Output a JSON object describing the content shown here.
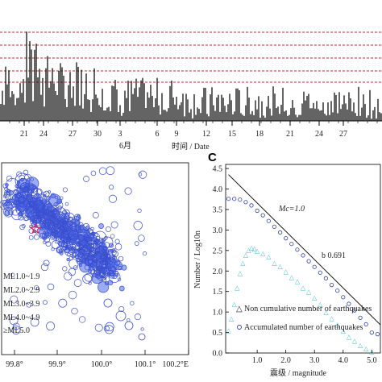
{
  "colors": {
    "bar": "#111111",
    "ref_line": "#c0283a",
    "circle": "#3b4fd0",
    "circle_fill": "#4a68e6",
    "triangle": "#3cc1d1",
    "accum": "#2d3fa8",
    "star": "#e0205a"
  },
  "chart_data": [
    {
      "type": "bar",
      "panel": "A",
      "description_ticks_only": true,
      "x_ticks": [
        "21",
        "24",
        "27",
        "30",
        "3",
        "6",
        "9",
        "12",
        "15",
        "18",
        "21",
        "24",
        "27"
      ],
      "x_label_month": "6月",
      "x_label": "时间 / Date",
      "ref_levels": [
        5,
        4,
        3,
        2,
        1
      ],
      "ylim": [
        0,
        5.3
      ],
      "series_seed": 7
    },
    {
      "type": "scatter",
      "panel": "B",
      "x_ticks": [
        "99.8°",
        "99.9°",
        "100.0°",
        "100.1°",
        "100.2°E"
      ],
      "xlim": [
        99.76,
        100.26
      ],
      "ylim": [
        25.45,
        26.0
      ],
      "legend": [
        "ML1.0~1.9",
        "ML2.0~2.9",
        "ML3.0~3.9",
        "ML4.0~4.9",
        "≥ML5.0"
      ]
    },
    {
      "type": "scatter",
      "panel": "C",
      "title_letter": "C",
      "xlabel": "震级 / magnitude",
      "ylabel": "Number / Log10n",
      "x_ticks": [
        "1.0",
        "2.0",
        "3.0",
        "4.0",
        "5.0"
      ],
      "y_ticks": [
        "0.0",
        "0.5",
        "1.0",
        "1.5",
        "2.0",
        "2.5",
        "3.0",
        "3.5",
        "4.0",
        "4.5"
      ],
      "xlim": [
        -0.1,
        5.3
      ],
      "ylim": [
        0,
        4.6
      ],
      "mc_label": "Mc=1.0",
      "b_label": "b  0.691",
      "fit_line": {
        "a": 4.35,
        "b": 0.691,
        "x_from": 0.0,
        "x_to": 5.3
      },
      "legend": [
        "Non cumulative number of earthquakes",
        "Accumulated number of earthquakes"
      ],
      "accumulated": [
        [
          0.0,
          3.76
        ],
        [
          0.2,
          3.76
        ],
        [
          0.4,
          3.74
        ],
        [
          0.6,
          3.68
        ],
        [
          0.8,
          3.6
        ],
        [
          1.0,
          3.47
        ],
        [
          1.2,
          3.36
        ],
        [
          1.4,
          3.22
        ],
        [
          1.6,
          3.08
        ],
        [
          1.8,
          2.94
        ],
        [
          2.0,
          2.8
        ],
        [
          2.2,
          2.66
        ],
        [
          2.4,
          2.52
        ],
        [
          2.6,
          2.38
        ],
        [
          2.8,
          2.24
        ],
        [
          3.0,
          2.1
        ],
        [
          3.2,
          1.96
        ],
        [
          3.4,
          1.82
        ],
        [
          3.6,
          1.66
        ],
        [
          3.8,
          1.52
        ],
        [
          4.0,
          1.36
        ],
        [
          4.2,
          1.2
        ],
        [
          4.4,
          1.04
        ],
        [
          4.6,
          0.86
        ],
        [
          4.8,
          0.7
        ],
        [
          5.0,
          0.5
        ],
        [
          5.2,
          0.46
        ]
      ],
      "noncumulative": [
        [
          0.0,
          0.56
        ],
        [
          0.1,
          0.85
        ],
        [
          0.2,
          1.2
        ],
        [
          0.3,
          1.6
        ],
        [
          0.4,
          1.96
        ],
        [
          0.5,
          2.2
        ],
        [
          0.6,
          2.4
        ],
        [
          0.7,
          2.52
        ],
        [
          0.8,
          2.58
        ],
        [
          0.9,
          2.56
        ],
        [
          1.0,
          2.5
        ],
        [
          1.2,
          2.44
        ],
        [
          1.4,
          2.36
        ],
        [
          1.6,
          2.2
        ],
        [
          1.8,
          2.12
        ],
        [
          2.0,
          2.0
        ],
        [
          2.2,
          1.86
        ],
        [
          2.4,
          1.76
        ],
        [
          2.6,
          1.6
        ],
        [
          2.8,
          1.5
        ],
        [
          3.0,
          1.36
        ],
        [
          3.2,
          1.2
        ],
        [
          3.4,
          1.0
        ],
        [
          3.6,
          0.86
        ],
        [
          3.8,
          0.7
        ],
        [
          4.0,
          0.55
        ],
        [
          4.2,
          0.4
        ],
        [
          4.4,
          0.3
        ],
        [
          4.6,
          0.2
        ],
        [
          4.8,
          0.12
        ],
        [
          5.0,
          0.05
        ]
      ]
    }
  ]
}
